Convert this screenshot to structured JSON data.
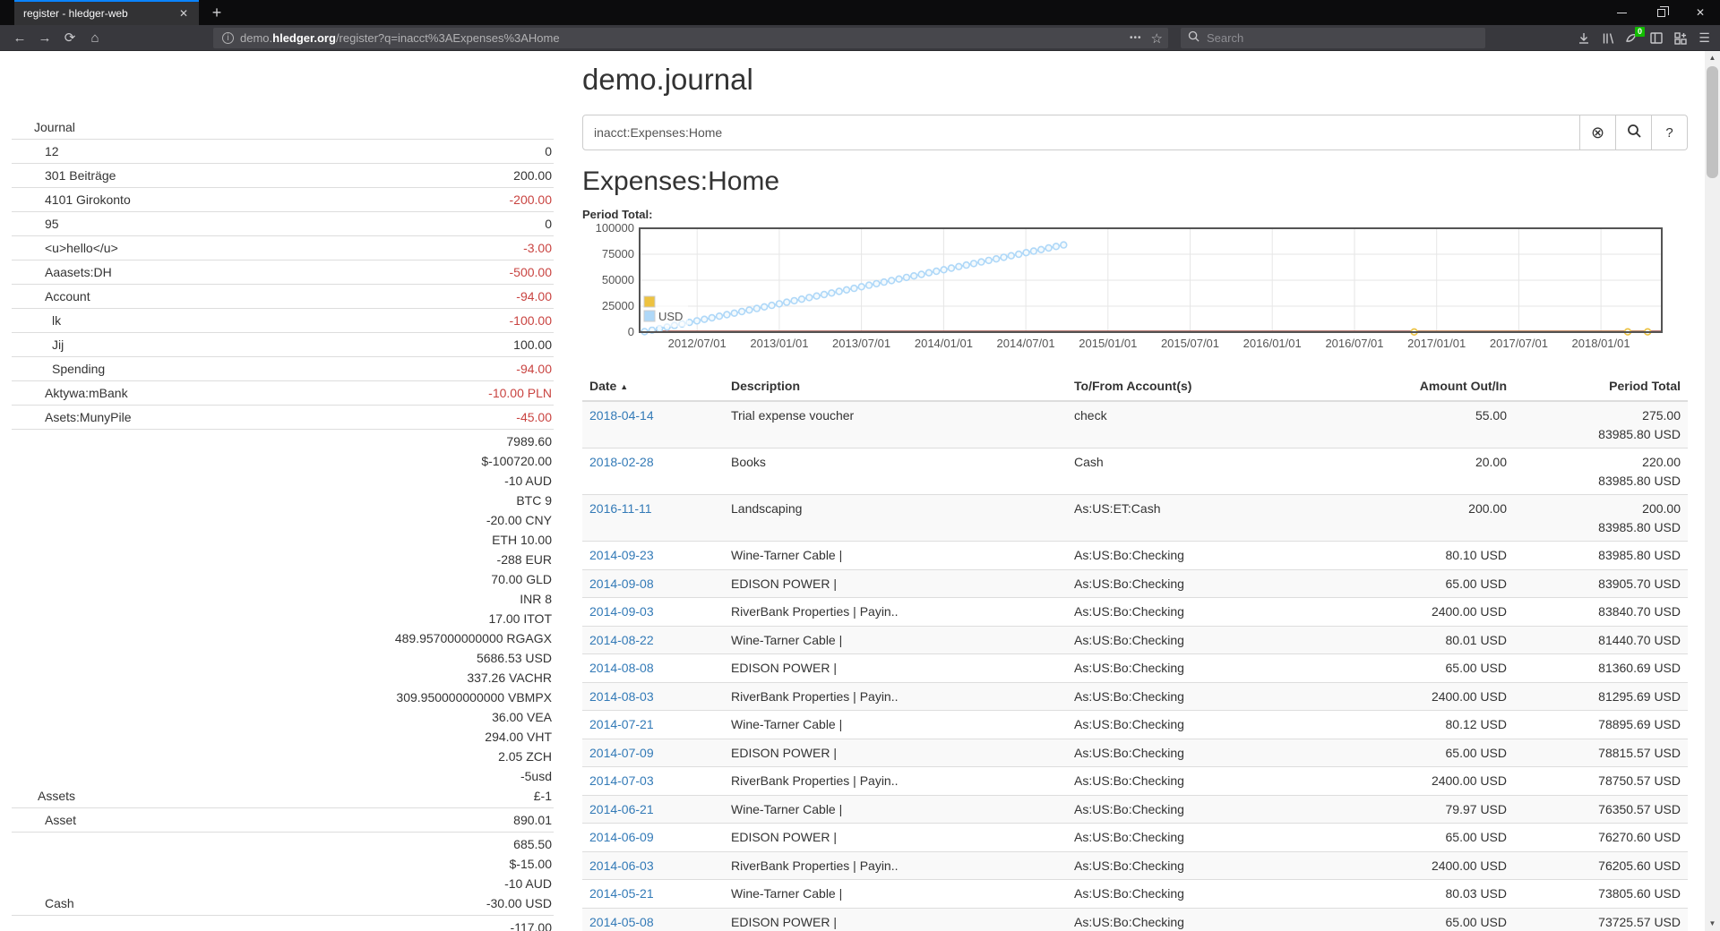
{
  "browser": {
    "tab_title": "register - hledger-web",
    "close_tab_icon": "✕",
    "new_tab_icon": "+",
    "back_icon": "←",
    "forward_icon": "→",
    "reload_icon": "⟳",
    "home_icon": "⌂",
    "url": {
      "subdomain": "demo.",
      "domain": "hledger.org",
      "path": "/register?q=inacct%3AExpenses%3AHome"
    },
    "url_page_actions_icon": "•••",
    "url_bookmark_icon": "☆",
    "search_placeholder": "Search",
    "extension_badge": "0",
    "menu_icon": "☰"
  },
  "page": {
    "title": "demo.journal",
    "sidebar": {
      "heading": "Journal",
      "accounts": [
        {
          "name": "12",
          "indent": 50,
          "values": [
            {
              "t": "0",
              "neg": false
            }
          ]
        },
        {
          "name": "301 Beiträge",
          "indent": 50,
          "values": [
            {
              "t": "200.00",
              "neg": false
            }
          ]
        },
        {
          "name": "4101 Girokonto",
          "indent": 50,
          "values": [
            {
              "t": "-200.00",
              "neg": true
            }
          ]
        },
        {
          "name": "95",
          "indent": 50,
          "values": [
            {
              "t": "0",
              "neg": false
            }
          ]
        },
        {
          "name": "<u>hello</u>",
          "indent": 50,
          "values": [
            {
              "t": "-3.00",
              "neg": true
            }
          ]
        },
        {
          "name": "Aaasets:DH",
          "indent": 50,
          "values": [
            {
              "t": "-500.00",
              "neg": true
            }
          ]
        },
        {
          "name": "Account",
          "indent": 50,
          "values": [
            {
              "t": "-94.00",
              "neg": true
            }
          ]
        },
        {
          "name": "lk",
          "indent": 58,
          "values": [
            {
              "t": "-100.00",
              "neg": true
            }
          ]
        },
        {
          "name": "Jij",
          "indent": 58,
          "values": [
            {
              "t": "100.00",
              "neg": false
            }
          ]
        },
        {
          "name": "Spending",
          "indent": 58,
          "values": [
            {
              "t": "-94.00",
              "neg": true
            }
          ]
        },
        {
          "name": "Aktywa:mBank",
          "indent": 50,
          "values": [
            {
              "t": "-10.00 PLN",
              "neg": true
            }
          ]
        },
        {
          "name": "Asets:MunyPile",
          "indent": 50,
          "values": [
            {
              "t": "-45.00",
              "neg": true
            }
          ]
        },
        {
          "name": "Assets",
          "indent": 42,
          "values": [
            {
              "t": "7989.60",
              "neg": false
            },
            {
              "t": "$-100720.00",
              "neg": false
            },
            {
              "t": "-10 AUD",
              "neg": false
            },
            {
              "t": "BTC 9",
              "neg": false
            },
            {
              "t": "-20.00 CNY",
              "neg": false
            },
            {
              "t": "ETH 10.00",
              "neg": false
            },
            {
              "t": "-288 EUR",
              "neg": false
            },
            {
              "t": "70.00 GLD",
              "neg": false
            },
            {
              "t": "INR 8",
              "neg": false
            },
            {
              "t": "17.00 ITOT",
              "neg": false
            },
            {
              "t": "489.957000000000 RGAGX",
              "neg": false
            },
            {
              "t": "5686.53 USD",
              "neg": false
            },
            {
              "t": "337.26 VACHR",
              "neg": false
            },
            {
              "t": "309.950000000000 VBMPX",
              "neg": false
            },
            {
              "t": "36.00 VEA",
              "neg": false
            },
            {
              "t": "294.00 VHT",
              "neg": false
            },
            {
              "t": "2.05 ZCH",
              "neg": false
            },
            {
              "t": "-5usd",
              "neg": false
            },
            {
              "t": "£-1",
              "neg": false
            }
          ]
        },
        {
          "name": "Asset",
          "indent": 50,
          "values": [
            {
              "t": "890.01",
              "neg": false
            }
          ]
        },
        {
          "name": "Cash",
          "indent": 50,
          "values": [
            {
              "t": "685.50",
              "neg": false
            },
            {
              "t": "$-15.00",
              "neg": false
            },
            {
              "t": "-10 AUD",
              "neg": false
            },
            {
              "t": "-30.00 USD",
              "neg": false
            }
          ]
        },
        {
          "name": "",
          "indent": 50,
          "values": [
            {
              "t": "-117.00",
              "neg": false
            }
          ]
        }
      ]
    },
    "query": {
      "value": "inacct:Expenses:Home",
      "clear_icon": "⊗",
      "help_label": "?"
    },
    "heading": "Expenses:Home",
    "chart_label": "Period Total:",
    "chart_data": {
      "type": "line",
      "title": "Period Total:",
      "grid": true,
      "legend_position": "inside bottom-left",
      "x_axis": {
        "min": 2012.15,
        "max": 2018.37,
        "tick_values": [
          2012.5,
          2013.0,
          2013.5,
          2014.0,
          2014.5,
          2015.0,
          2015.5,
          2016.0,
          2016.5,
          2017.0,
          2017.5,
          2018.0
        ],
        "tick_labels": [
          "2012/07/01",
          "2013/01/01",
          "2013/07/01",
          "2014/01/01",
          "2014/07/01",
          "2015/01/01",
          "2015/07/01",
          "2016/01/01",
          "2016/07/01",
          "2017/01/01",
          "2017/07/01",
          "2018/01/01"
        ],
        "line_color": "#a85a52"
      },
      "y_axis": {
        "min": 0,
        "max": 100000,
        "ticks": [
          0,
          25000,
          50000,
          75000,
          100000
        ],
        "tick_labels": [
          "0",
          "25000",
          "50000",
          "75000",
          "100000"
        ]
      },
      "series": [
        {
          "name": "USD",
          "color": "#afd8f8",
          "marker": "circle",
          "points_linear": {
            "x0": 2012.18,
            "y0": 400,
            "x1": 2014.73,
            "y1": 83986,
            "count": 57
          }
        },
        {
          "name": "",
          "color": "#edc240",
          "marker": "circle",
          "points": [
            [
              2016.863,
              200
            ],
            [
              2018.163,
              220
            ],
            [
              2018.284,
              275
            ]
          ]
        }
      ]
    },
    "register": {
      "columns": {
        "date": "Date",
        "sort_caret": "▲",
        "description": "Description",
        "account": "To/From Account(s)",
        "amount": "Amount Out/In",
        "total": "Period Total"
      },
      "rows": [
        {
          "date": "2018-04-14",
          "description": "Trial expense voucher",
          "account": "check",
          "amount": "55.00",
          "total": [
            "275.00",
            "83985.80 USD"
          ]
        },
        {
          "date": "2018-02-28",
          "description": "Books",
          "account": "Cash",
          "amount": "20.00",
          "total": [
            "220.00",
            "83985.80 USD"
          ]
        },
        {
          "date": "2016-11-11",
          "description": "Landscaping",
          "account": "As:US:ET:Cash",
          "amount": "200.00",
          "total": [
            "200.00",
            "83985.80 USD"
          ]
        },
        {
          "date": "2014-09-23",
          "description": "Wine-Tarner Cable |",
          "account": "As:US:Bo:Checking",
          "amount": "80.10 USD",
          "total": [
            "83985.80 USD"
          ]
        },
        {
          "date": "2014-09-08",
          "description": "EDISON POWER |",
          "account": "As:US:Bo:Checking",
          "amount": "65.00 USD",
          "total": [
            "83905.70 USD"
          ]
        },
        {
          "date": "2014-09-03",
          "description": "RiverBank Properties | Payin..",
          "account": "As:US:Bo:Checking",
          "amount": "2400.00 USD",
          "total": [
            "83840.70 USD"
          ]
        },
        {
          "date": "2014-08-22",
          "description": "Wine-Tarner Cable |",
          "account": "As:US:Bo:Checking",
          "amount": "80.01 USD",
          "total": [
            "81440.70 USD"
          ]
        },
        {
          "date": "2014-08-08",
          "description": "EDISON POWER |",
          "account": "As:US:Bo:Checking",
          "amount": "65.00 USD",
          "total": [
            "81360.69 USD"
          ]
        },
        {
          "date": "2014-08-03",
          "description": "RiverBank Properties | Payin..",
          "account": "As:US:Bo:Checking",
          "amount": "2400.00 USD",
          "total": [
            "81295.69 USD"
          ]
        },
        {
          "date": "2014-07-21",
          "description": "Wine-Tarner Cable |",
          "account": "As:US:Bo:Checking",
          "amount": "80.12 USD",
          "total": [
            "78895.69 USD"
          ]
        },
        {
          "date": "2014-07-09",
          "description": "EDISON POWER |",
          "account": "As:US:Bo:Checking",
          "amount": "65.00 USD",
          "total": [
            "78815.57 USD"
          ]
        },
        {
          "date": "2014-07-03",
          "description": "RiverBank Properties | Payin..",
          "account": "As:US:Bo:Checking",
          "amount": "2400.00 USD",
          "total": [
            "78750.57 USD"
          ]
        },
        {
          "date": "2014-06-21",
          "description": "Wine-Tarner Cable |",
          "account": "As:US:Bo:Checking",
          "amount": "79.97 USD",
          "total": [
            "76350.57 USD"
          ]
        },
        {
          "date": "2014-06-09",
          "description": "EDISON POWER |",
          "account": "As:US:Bo:Checking",
          "amount": "65.00 USD",
          "total": [
            "76270.60 USD"
          ]
        },
        {
          "date": "2014-06-03",
          "description": "RiverBank Properties | Payin..",
          "account": "As:US:Bo:Checking",
          "amount": "2400.00 USD",
          "total": [
            "76205.60 USD"
          ]
        },
        {
          "date": "2014-05-21",
          "description": "Wine-Tarner Cable |",
          "account": "As:US:Bo:Checking",
          "amount": "80.03 USD",
          "total": [
            "73805.60 USD"
          ]
        },
        {
          "date": "2014-05-08",
          "description": "EDISON POWER |",
          "account": "As:US:Bo:Checking",
          "amount": "65.00 USD",
          "total": [
            "73725.57 USD"
          ]
        }
      ]
    }
  }
}
